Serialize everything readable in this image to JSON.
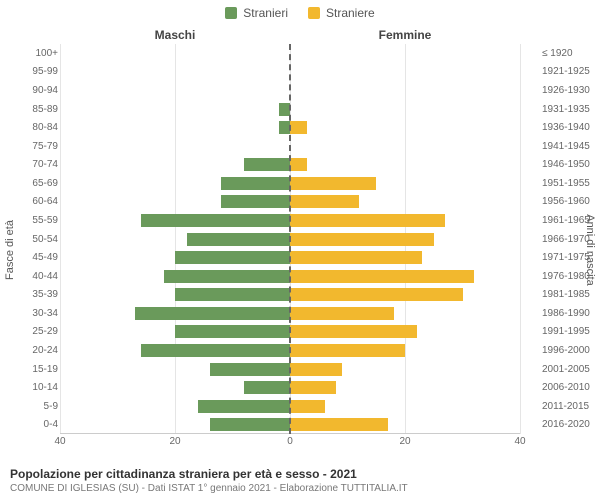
{
  "legend": {
    "male": {
      "label": "Stranieri",
      "color": "#6a9a5b"
    },
    "female": {
      "label": "Straniere",
      "color": "#f2b82e"
    }
  },
  "column_titles": {
    "left": "Maschi",
    "right": "Femmine"
  },
  "axis_labels": {
    "left": "Fasce di età",
    "right": "Anni di nascita"
  },
  "footer": {
    "title": "Popolazione per cittadinanza straniera per età e sesso - 2021",
    "sub": "COMUNE DI IGLESIAS (SU) - Dati ISTAT 1° gennaio 2021 - Elaborazione TUTTITALIA.IT"
  },
  "chart": {
    "type": "population-pyramid",
    "x_max": 40,
    "x_ticks": [
      40,
      20,
      0,
      20,
      40
    ],
    "grid_color": "#e5e5e5",
    "centerline_color": "#666666",
    "background_color": "#ffffff",
    "bar_height_ratio": 0.7,
    "left_tick_font_size": 10,
    "rows": [
      {
        "age": "100+",
        "birth": "≤ 1920",
        "male": 0,
        "female": 0
      },
      {
        "age": "95-99",
        "birth": "1921-1925",
        "male": 0,
        "female": 0
      },
      {
        "age": "90-94",
        "birth": "1926-1930",
        "male": 0,
        "female": 0
      },
      {
        "age": "85-89",
        "birth": "1931-1935",
        "male": 2,
        "female": 0
      },
      {
        "age": "80-84",
        "birth": "1936-1940",
        "male": 2,
        "female": 3
      },
      {
        "age": "75-79",
        "birth": "1941-1945",
        "male": 0,
        "female": 0
      },
      {
        "age": "70-74",
        "birth": "1946-1950",
        "male": 8,
        "female": 3
      },
      {
        "age": "65-69",
        "birth": "1951-1955",
        "male": 12,
        "female": 15
      },
      {
        "age": "60-64",
        "birth": "1956-1960",
        "male": 12,
        "female": 12
      },
      {
        "age": "55-59",
        "birth": "1961-1965",
        "male": 26,
        "female": 27
      },
      {
        "age": "50-54",
        "birth": "1966-1970",
        "male": 18,
        "female": 25
      },
      {
        "age": "45-49",
        "birth": "1971-1975",
        "male": 20,
        "female": 23
      },
      {
        "age": "40-44",
        "birth": "1976-1980",
        "male": 22,
        "female": 32
      },
      {
        "age": "35-39",
        "birth": "1981-1985",
        "male": 20,
        "female": 30
      },
      {
        "age": "30-34",
        "birth": "1986-1990",
        "male": 27,
        "female": 18
      },
      {
        "age": "25-29",
        "birth": "1991-1995",
        "male": 20,
        "female": 22
      },
      {
        "age": "20-24",
        "birth": "1996-2000",
        "male": 26,
        "female": 20
      },
      {
        "age": "15-19",
        "birth": "2001-2005",
        "male": 14,
        "female": 9
      },
      {
        "age": "10-14",
        "birth": "2006-2010",
        "male": 8,
        "female": 8
      },
      {
        "age": "5-9",
        "birth": "2011-2015",
        "male": 16,
        "female": 6
      },
      {
        "age": "0-4",
        "birth": "2016-2020",
        "male": 14,
        "female": 17
      }
    ]
  }
}
